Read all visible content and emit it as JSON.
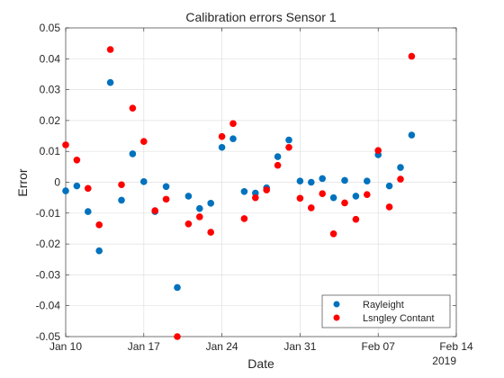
{
  "chart_data": {
    "type": "scatter",
    "title": "Calibration errors Sensor 1",
    "xlabel": "Date",
    "ylabel": "Error",
    "xlim": [
      "2019-01-10",
      "2019-02-14"
    ],
    "ylim": [
      -0.05,
      0.05
    ],
    "x_ticks": [
      "Jan 10",
      "Jan 17",
      "Jan 24",
      "Jan 31",
      "Feb 07",
      "Feb 14"
    ],
    "x_tick_dates": [
      "2019-01-10",
      "2019-01-17",
      "2019-01-24",
      "2019-01-31",
      "2019-02-07",
      "2019-02-14"
    ],
    "x_secondary_label": "2019",
    "y_ticks": [
      "-0.05",
      "-0.04",
      "-0.03",
      "-0.02",
      "-0.01",
      "0",
      "0.01",
      "0.02",
      "0.03",
      "0.04",
      "0.05"
    ],
    "grid": true,
    "legend_position": "bottom-right",
    "series": [
      {
        "name": "Rayleight",
        "color": "#0072BD",
        "x": [
          "2019-01-10",
          "2019-01-11",
          "2019-01-12",
          "2019-01-13",
          "2019-01-14",
          "2019-01-15",
          "2019-01-16",
          "2019-01-17",
          "2019-01-18",
          "2019-01-19",
          "2019-01-20",
          "2019-01-21",
          "2019-01-22",
          "2019-01-23",
          "2019-01-24",
          "2019-01-25",
          "2019-01-26",
          "2019-01-27",
          "2019-01-28",
          "2019-01-29",
          "2019-01-30",
          "2019-01-31",
          "2019-02-01",
          "2019-02-02",
          "2019-02-03",
          "2019-02-04",
          "2019-02-05",
          "2019-02-06",
          "2019-02-07",
          "2019-02-08",
          "2019-02-09",
          "2019-02-10"
        ],
        "y": [
          -0.0028,
          -0.0012,
          -0.0095,
          -0.0222,
          0.0323,
          -0.0058,
          0.0092,
          0.0002,
          -0.0095,
          -0.0014,
          -0.0341,
          -0.0045,
          -0.0085,
          -0.0068,
          0.0113,
          0.0141,
          -0.003,
          -0.0035,
          -0.0018,
          0.0083,
          0.0137,
          0.0004,
          0.0,
          0.0012,
          -0.005,
          0.0006,
          -0.0045,
          0.0004,
          0.0089,
          -0.0012,
          0.0048,
          0.0153
        ]
      },
      {
        "name": "Lsngley Contant",
        "color": "#FF0000",
        "x": [
          "2019-01-10",
          "2019-01-11",
          "2019-01-12",
          "2019-01-13",
          "2019-01-14",
          "2019-01-15",
          "2019-01-16",
          "2019-01-17",
          "2019-01-18",
          "2019-01-19",
          "2019-01-20",
          "2019-01-21",
          "2019-01-22",
          "2019-01-23",
          "2019-01-24",
          "2019-01-25",
          "2019-01-26",
          "2019-01-27",
          "2019-01-28",
          "2019-01-29",
          "2019-01-30",
          "2019-01-31",
          "2019-02-01",
          "2019-02-02",
          "2019-02-03",
          "2019-02-04",
          "2019-02-05",
          "2019-02-06",
          "2019-02-07",
          "2019-02-08",
          "2019-02-09",
          "2019-02-10"
        ],
        "y": [
          0.0121,
          0.0072,
          -0.002,
          -0.0138,
          0.043,
          -0.0008,
          0.024,
          0.0132,
          -0.0092,
          -0.0055,
          -0.05,
          -0.0135,
          -0.0112,
          -0.0162,
          0.0148,
          0.019,
          -0.0118,
          -0.005,
          -0.0025,
          0.0055,
          0.0113,
          -0.0052,
          -0.0083,
          -0.0037,
          -0.0167,
          -0.0067,
          -0.012,
          -0.004,
          0.0103,
          -0.008,
          0.001,
          0.0408
        ]
      }
    ]
  }
}
